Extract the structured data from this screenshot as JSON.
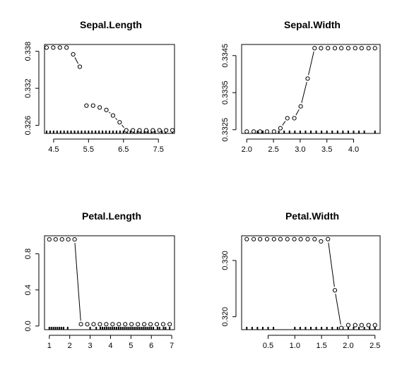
{
  "chart_data": [
    {
      "type": "line",
      "title": "Sepal.Length",
      "xlabel": "",
      "ylabel": "",
      "xlim": [
        4.24,
        7.96
      ],
      "ylim": [
        0.3247,
        0.3391
      ],
      "xticks": [
        4.5,
        5.5,
        6.5,
        7.5
      ],
      "xtick_labels": [
        "4.5",
        "5.5",
        "6.5",
        "7.5"
      ],
      "yticks": [
        0.326,
        0.332,
        0.338
      ],
      "ytick_labels": [
        "0.326",
        "0.332",
        "0.338"
      ],
      "rug": [
        4.3,
        4.4,
        4.5,
        4.6,
        4.7,
        4.8,
        4.9,
        5.0,
        5.1,
        5.2,
        5.3,
        5.4,
        5.5,
        5.6,
        5.7,
        5.8,
        5.9,
        6.0,
        6.1,
        6.2,
        6.3,
        6.4,
        6.5,
        6.6,
        6.7,
        6.8,
        6.9,
        7.0,
        7.1,
        7.2,
        7.3,
        7.4,
        7.6,
        7.7,
        7.9
      ],
      "x": [
        4.3,
        4.49,
        4.68,
        4.87,
        5.06,
        5.25,
        5.44,
        5.63,
        5.82,
        6.01,
        6.2,
        6.39,
        6.58,
        6.77,
        6.96,
        7.15,
        7.34,
        7.53,
        7.72,
        7.9
      ],
      "y": [
        0.3386,
        0.3386,
        0.3386,
        0.3386,
        0.3375,
        0.3355,
        0.3292,
        0.3292,
        0.3289,
        0.3285,
        0.3276,
        0.3265,
        0.3252,
        0.3252,
        0.3252,
        0.3252,
        0.3252,
        0.3252,
        0.3252,
        0.3252
      ],
      "connected": [
        true,
        true,
        true,
        false,
        true,
        false,
        true,
        true,
        true,
        true,
        true,
        true,
        true,
        true,
        true,
        true,
        true,
        true,
        true
      ]
    },
    {
      "type": "line",
      "title": "Sepal.Width",
      "xlabel": "",
      "ylabel": "",
      "xlim": [
        1.904,
        4.496
      ],
      "ylim": [
        0.3324,
        0.3348
      ],
      "xticks": [
        2.0,
        2.5,
        3.0,
        3.5,
        4.0
      ],
      "xtick_labels": [
        "2.0",
        "2.5",
        "3.0",
        "3.5",
        "4.0"
      ],
      "yticks": [
        0.3325,
        0.3335,
        0.3345
      ],
      "ytick_labels": [
        "0.3325",
        "0.3335",
        "0.3345"
      ],
      "rug": [
        2.0,
        2.2,
        2.3,
        2.4,
        2.5,
        2.6,
        2.7,
        2.8,
        2.9,
        3.0,
        3.1,
        3.2,
        3.3,
        3.4,
        3.5,
        3.6,
        3.7,
        3.8,
        3.9,
        4.0,
        4.1,
        4.2,
        4.4
      ],
      "x": [
        2.0,
        2.13,
        2.25,
        2.38,
        2.51,
        2.63,
        2.76,
        2.89,
        3.01,
        3.14,
        3.27,
        3.39,
        3.52,
        3.65,
        3.77,
        3.9,
        4.03,
        4.15,
        4.28,
        4.4
      ],
      "y": [
        0.33245,
        0.33245,
        0.33245,
        0.33245,
        0.33245,
        0.33254,
        0.33281,
        0.33281,
        0.33313,
        0.33388,
        0.3347,
        0.3347,
        0.3347,
        0.3347,
        0.3347,
        0.3347,
        0.3347,
        0.3347,
        0.3347,
        0.3347
      ],
      "connected": [
        false,
        false,
        false,
        false,
        true,
        true,
        false,
        true,
        true,
        true,
        true,
        true,
        true,
        true,
        true,
        true,
        true,
        true,
        true
      ]
    },
    {
      "type": "line",
      "title": "Petal.Length",
      "xlabel": "",
      "ylabel": "",
      "xlim": [
        0.764,
        7.136
      ],
      "ylim": [
        -0.04,
        1.0
      ],
      "xticks": [
        1,
        2,
        3,
        4,
        5,
        6,
        7
      ],
      "xtick_labels": [
        "1",
        "2",
        "3",
        "4",
        "5",
        "6",
        "7"
      ],
      "yticks": [
        0.0,
        0.4,
        0.8
      ],
      "ytick_labels": [
        "0.0",
        "0.4",
        "0.8"
      ],
      "rug": [
        1.0,
        1.1,
        1.2,
        1.3,
        1.4,
        1.5,
        1.6,
        1.7,
        1.9,
        3.0,
        3.3,
        3.5,
        3.6,
        3.7,
        3.8,
        3.9,
        4.0,
        4.1,
        4.2,
        4.3,
        4.4,
        4.5,
        4.6,
        4.7,
        4.8,
        4.9,
        5.0,
        5.1,
        5.2,
        5.3,
        5.4,
        5.5,
        5.6,
        5.7,
        5.8,
        5.9,
        6.0,
        6.1,
        6.3,
        6.4,
        6.6,
        6.7,
        6.9
      ],
      "x": [
        1.0,
        1.31,
        1.62,
        1.93,
        2.24,
        2.55,
        2.86,
        3.17,
        3.48,
        3.79,
        4.1,
        4.41,
        4.72,
        5.03,
        5.34,
        5.65,
        5.96,
        6.27,
        6.58,
        6.9
      ],
      "y": [
        0.96,
        0.96,
        0.96,
        0.96,
        0.96,
        0.02,
        0.02,
        0.02,
        0.02,
        0.02,
        0.02,
        0.02,
        0.02,
        0.02,
        0.02,
        0.02,
        0.02,
        0.02,
        0.02,
        0.02
      ],
      "connected": [
        true,
        true,
        true,
        true,
        true,
        true,
        true,
        true,
        true,
        true,
        true,
        true,
        true,
        true,
        true,
        true,
        true,
        true,
        true
      ]
    },
    {
      "type": "line",
      "title": "Petal.Width",
      "xlabel": "",
      "ylabel": "",
      "xlim": [
        0.004,
        2.596
      ],
      "ylim": [
        0.3177,
        0.3344
      ],
      "xticks": [
        0.5,
        1.0,
        1.5,
        2.0,
        2.5
      ],
      "xtick_labels": [
        "0.5",
        "1.0",
        "1.5",
        "2.0",
        "2.5"
      ],
      "yticks": [
        0.32,
        0.33
      ],
      "ytick_labels": [
        "0.320",
        "0.330"
      ],
      "rug": [
        0.1,
        0.2,
        0.3,
        0.4,
        0.5,
        0.6,
        1.0,
        1.1,
        1.2,
        1.3,
        1.4,
        1.5,
        1.6,
        1.7,
        1.8,
        1.9,
        2.0,
        2.1,
        2.2,
        2.3,
        2.4,
        2.5
      ],
      "x": [
        0.1,
        0.23,
        0.35,
        0.48,
        0.61,
        0.73,
        0.86,
        0.99,
        1.11,
        1.24,
        1.37,
        1.49,
        1.62,
        1.75,
        1.87,
        2.0,
        2.13,
        2.25,
        2.38,
        2.5
      ],
      "y": [
        0.3338,
        0.3338,
        0.3338,
        0.3338,
        0.3338,
        0.3338,
        0.3338,
        0.3338,
        0.3338,
        0.3338,
        0.3338,
        0.3334,
        0.3338,
        0.3247,
        0.318,
        0.3185,
        0.3185,
        0.3185,
        0.3185,
        0.3185
      ],
      "connected": [
        true,
        true,
        true,
        true,
        true,
        true,
        true,
        true,
        true,
        true,
        true,
        true,
        true,
        true,
        true,
        true,
        true,
        true,
        true
      ]
    }
  ]
}
